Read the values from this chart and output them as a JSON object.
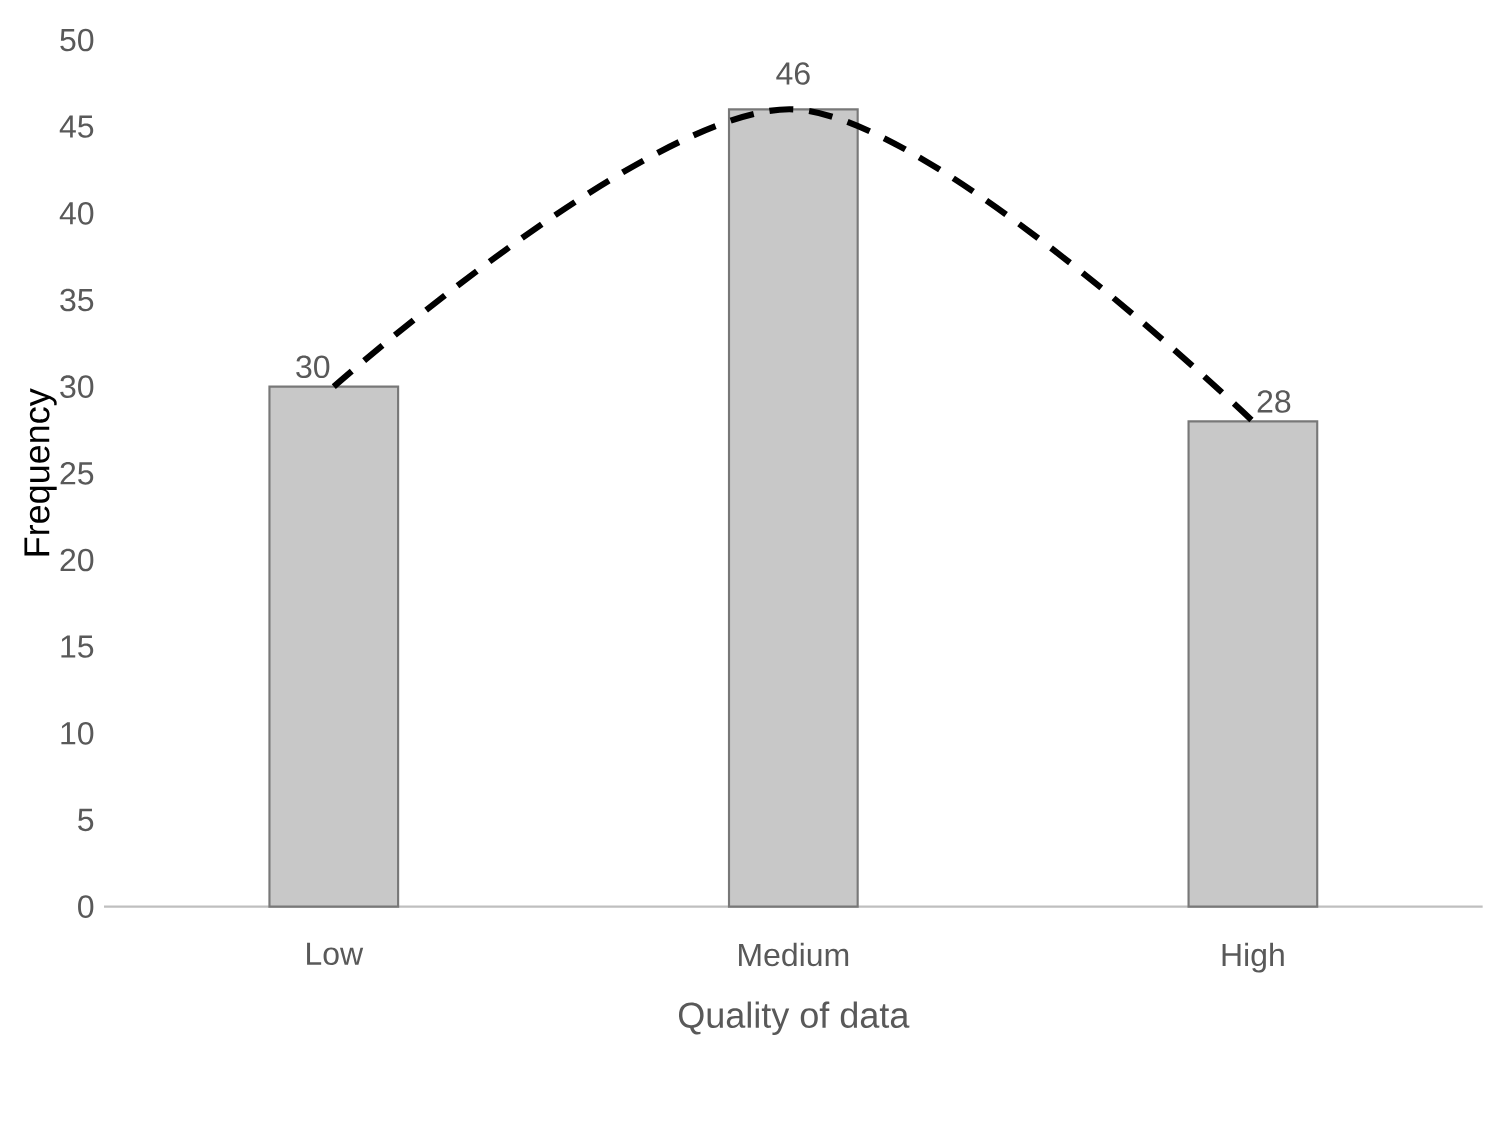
{
  "chart_data": {
    "type": "bar",
    "xlabel": "Quality of data",
    "ylabel": "Frequency",
    "categories": [
      "Low",
      "Medium",
      "High"
    ],
    "series": [
      {
        "color": "#c8c8c8",
        "values": [
          30,
          46,
          28
        ],
        "value_labels": [
          "30",
          "46",
          "28"
        ]
      },
      {
        "type": "line",
        "color": "#000000",
        "line_style": "dashed",
        "marker": "none",
        "values": [
          30,
          46,
          28
        ]
      }
    ],
    "ylim": [
      0,
      50
    ],
    "yticks": [
      0,
      5,
      10,
      15,
      20,
      25,
      30,
      35,
      40,
      45,
      50
    ],
    "grid": false,
    "legend": false
  }
}
